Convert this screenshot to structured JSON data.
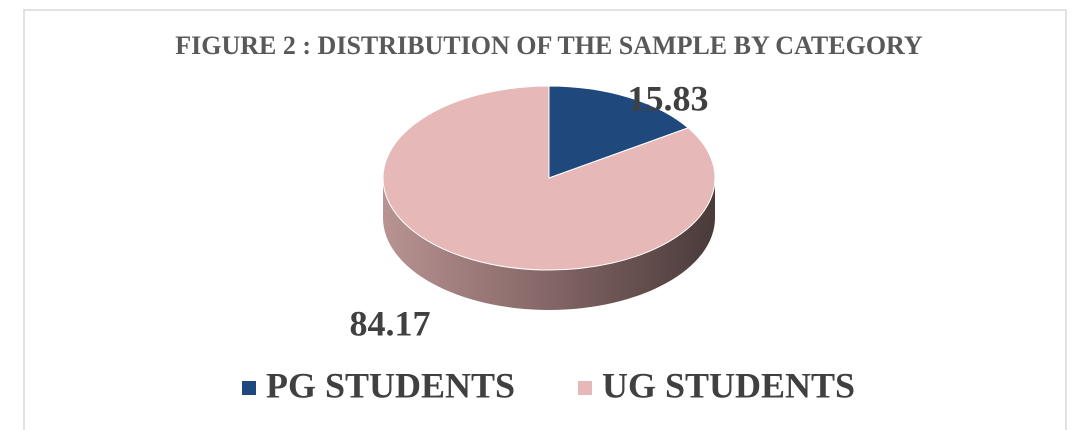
{
  "chart_data": {
    "type": "pie",
    "title": "FIGURE 2 : DISTRIBUTION OF THE SAMPLE BY CATEGORY",
    "categories": [
      "PG STUDENTS",
      "UG STUDENTS"
    ],
    "values": [
      15.83,
      84.17
    ],
    "colors": [
      "#1f497d",
      "#e6b9b8"
    ],
    "legend": "bottom"
  }
}
